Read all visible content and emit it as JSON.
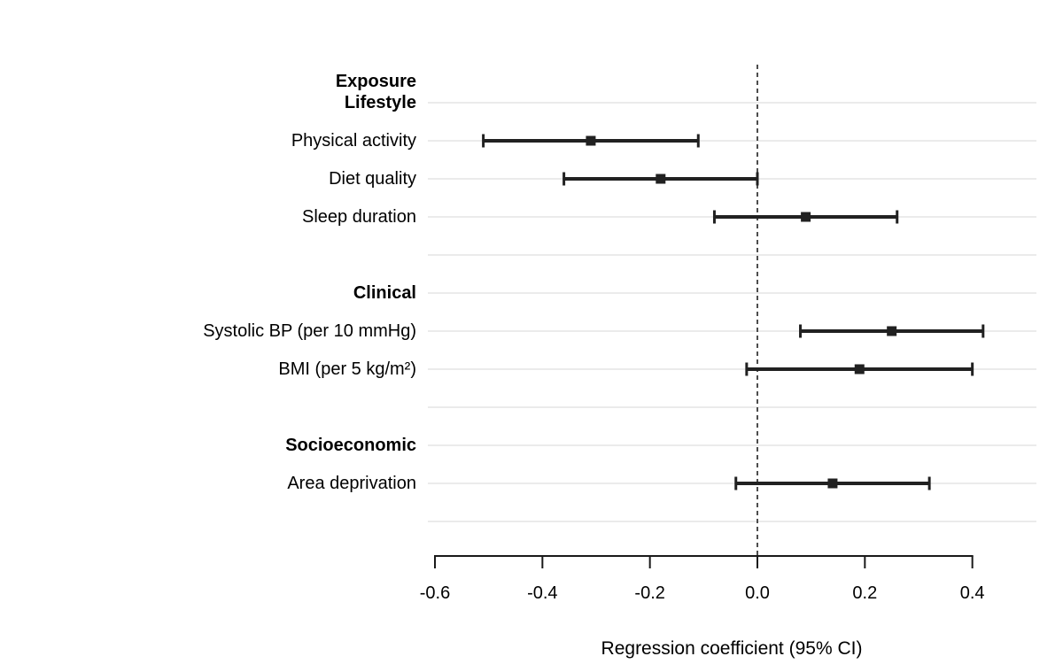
{
  "chart_data": {
    "type": "scatter",
    "subtype": "forest-plot",
    "title": "",
    "xlabel": "Regression coefficient (95% CI)",
    "column_header": "Exposure",
    "xlim": [
      -0.6,
      0.4
    ],
    "x_ticks": [
      -0.6,
      -0.4,
      -0.2,
      0.0,
      0.2,
      0.4
    ],
    "x_tick_labels": [
      "-0.6",
      "-0.4",
      "-0.2",
      "0.0",
      "0.2",
      "0.4"
    ],
    "reference_line_x": 0.0,
    "grid": true,
    "legend": "none",
    "groups": [
      {
        "label": "Lifestyle",
        "items": [
          {
            "label": "Physical activity",
            "estimate": -0.31,
            "ci_low": -0.51,
            "ci_high": -0.11
          },
          {
            "label": "Diet quality",
            "estimate": -0.18,
            "ci_low": -0.36,
            "ci_high": 0.0
          },
          {
            "label": "Sleep duration",
            "estimate": 0.09,
            "ci_low": -0.08,
            "ci_high": 0.26
          }
        ]
      },
      {
        "label": "Clinical",
        "items": [
          {
            "label": "Systolic BP (per 10 mmHg)",
            "estimate": 0.25,
            "ci_low": 0.08,
            "ci_high": 0.42
          },
          {
            "label": "BMI (per 5 kg/m²)",
            "estimate": 0.19,
            "ci_low": -0.02,
            "ci_high": 0.4
          }
        ]
      },
      {
        "label": "Socioeconomic",
        "items": [
          {
            "label": "Area deprivation",
            "estimate": 0.14,
            "ci_low": -0.04,
            "ci_high": 0.32
          }
        ]
      }
    ],
    "colors": {
      "marker": "#212121",
      "ci_line": "#212121",
      "axis": "#1a1a1a",
      "text": "#000000",
      "gridline": "#ebebeb",
      "reference_line": "#4d4d4d",
      "background": "#ffffff"
    }
  }
}
